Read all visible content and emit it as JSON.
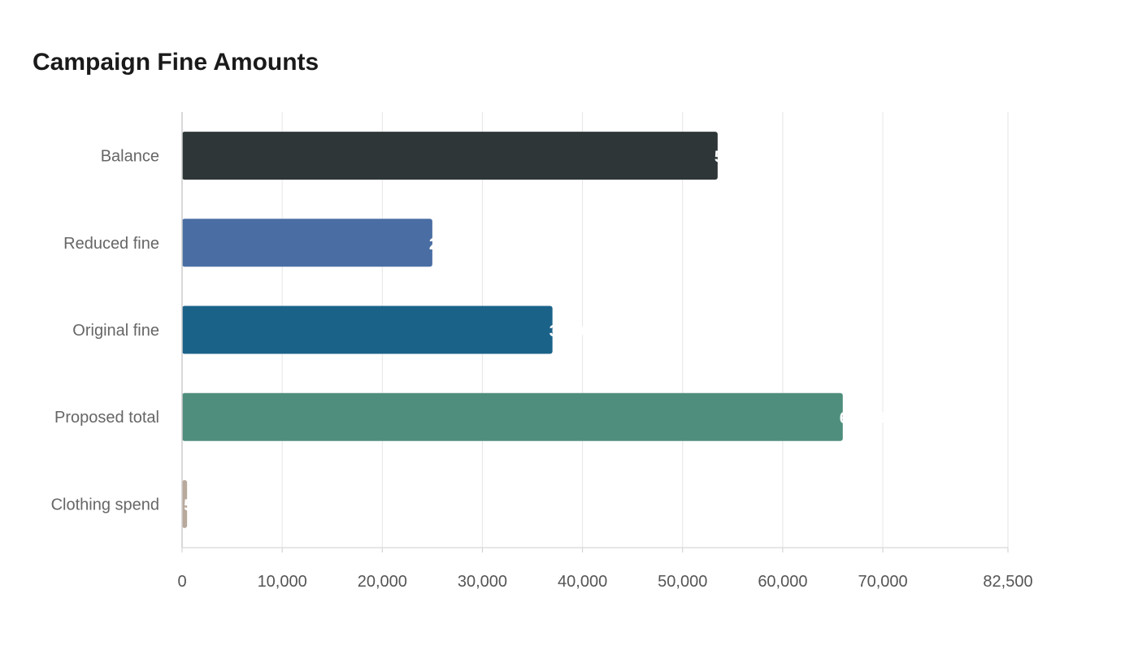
{
  "chart_data": {
    "type": "bar",
    "orientation": "horizontal",
    "title": "Campaign Fine Amounts",
    "xlabel": "",
    "ylabel": "",
    "categories": [
      "Balance",
      "Reduced fine",
      "Original fine",
      "Proposed total",
      "Clothing spend"
    ],
    "values": [
      53500,
      25000,
      37000,
      66000,
      500
    ],
    "data_labels": [
      "53,500",
      "25,000",
      "37,000",
      "66,000",
      "500"
    ],
    "colors": [
      "#2e3638",
      "#4a6ea3",
      "#1b6289",
      "#4f8e7d",
      "#b8a99c"
    ],
    "xlim": [
      0,
      82500
    ],
    "xticks": [
      0,
      10000,
      20000,
      30000,
      40000,
      50000,
      60000,
      70000,
      82500
    ],
    "xtick_labels": [
      "0",
      "10,000",
      "20,000",
      "30,000",
      "40,000",
      "50,000",
      "60,000",
      "70,000",
      "82,500"
    ],
    "grid": "vertical",
    "legend": "none"
  }
}
